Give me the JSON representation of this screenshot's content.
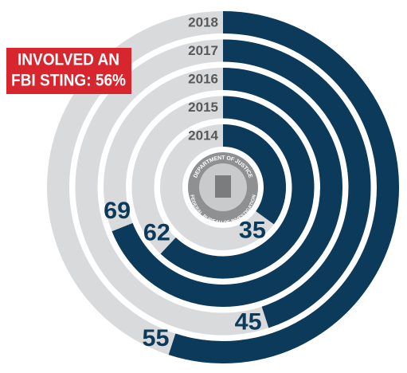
{
  "chart_data": {
    "type": "radial-bar",
    "categories": [
      "2014",
      "2015",
      "2016",
      "2017",
      "2018"
    ],
    "values": [
      35,
      62,
      69,
      45,
      55
    ],
    "color": "#0c3a5b",
    "track_color": "#d9dadb",
    "annotation": [
      "INVOLVED AN",
      "FBI STING: 56%"
    ],
    "seal_text": [
      "DEPARTMENT OF JUSTICE",
      "FEDERAL BUREAU OF INVESTIGATION"
    ]
  }
}
